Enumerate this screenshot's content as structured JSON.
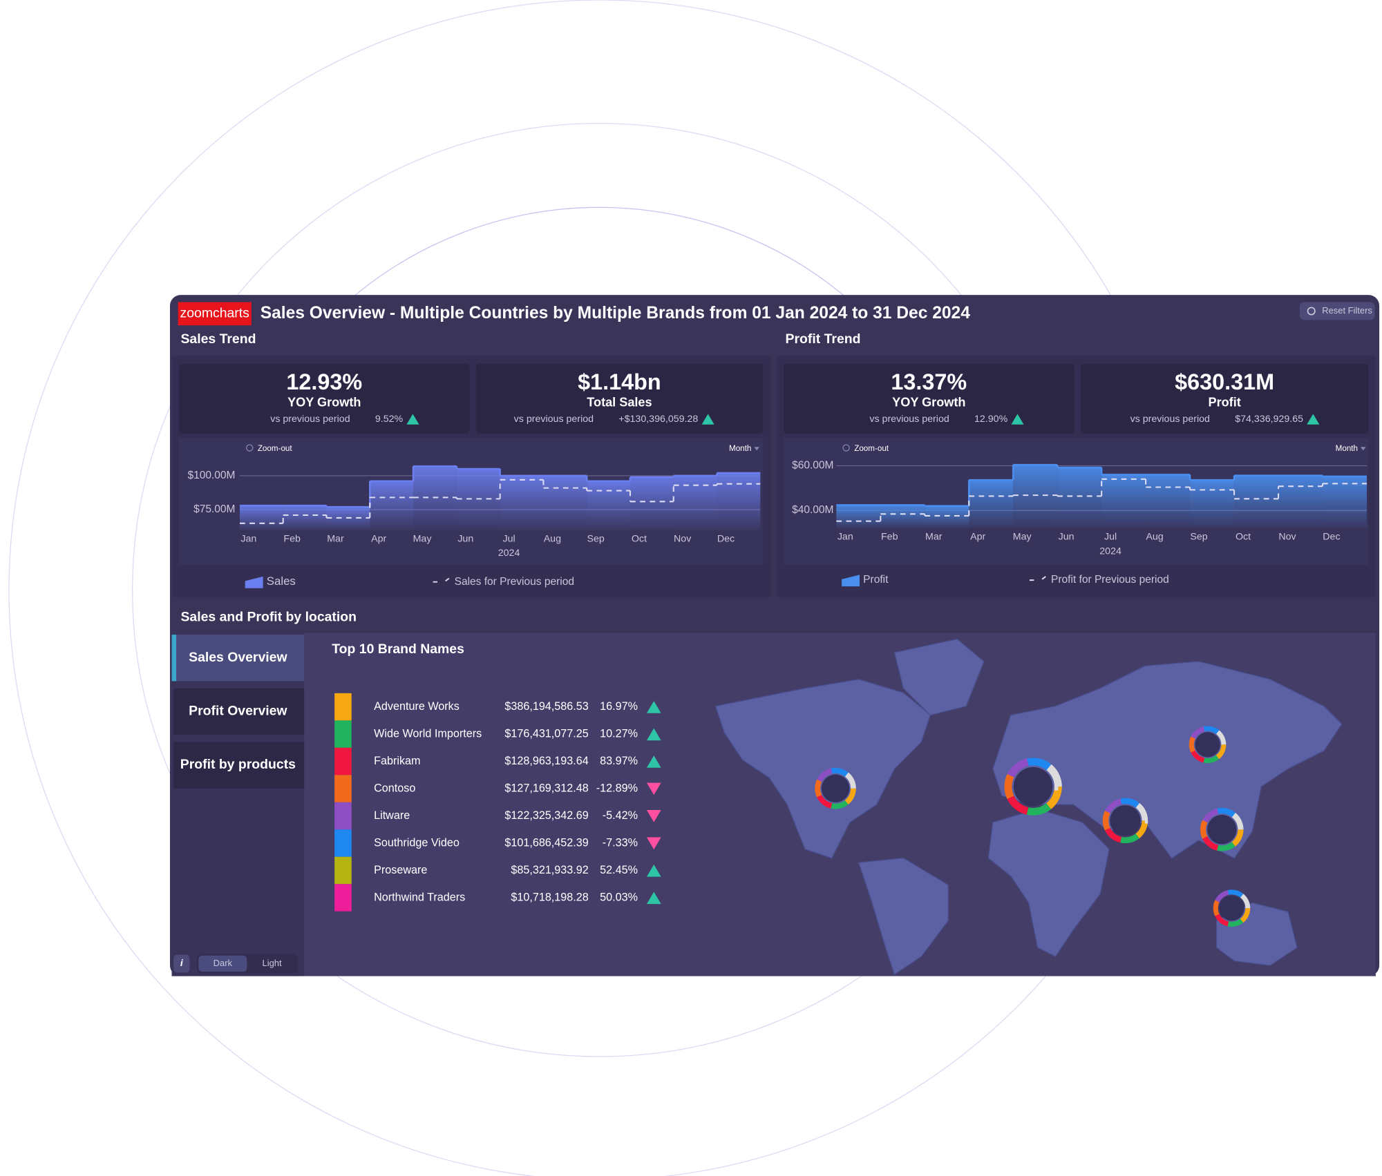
{
  "header": {
    "logo": "zoomcharts",
    "title": "Sales Overview - Multiple Countries by Multiple Brands from 01 Jan 2024 to 31 Dec 2024",
    "reset": "Reset Filters"
  },
  "kpis": [
    {
      "value": "12.93%",
      "label": "YOY Growth",
      "compare": "vs previous period",
      "delta": "9.52%",
      "trend": "up"
    },
    {
      "value": "$1.14bn",
      "label": "Total Sales",
      "compare": "vs previous period",
      "delta": "+$130,396,059.28",
      "trend": "up"
    },
    {
      "value": "13.37%",
      "label": "YOY Growth",
      "compare": "vs previous period",
      "delta": "12.90%",
      "trend": "up"
    },
    {
      "value": "$630.31M",
      "label": "Profit",
      "compare": "vs previous period",
      "delta": "$74,336,929.65",
      "trend": "up"
    }
  ],
  "chart_data": [
    {
      "type": "line",
      "step": true,
      "title": "Sales Trend",
      "zoom": "Zoom-out",
      "interval": "Month",
      "categories": [
        "Jan",
        "Feb",
        "Mar",
        "Apr",
        "May",
        "Jun",
        "Jul",
        "Aug",
        "Sep",
        "Oct",
        "Nov",
        "Dec"
      ],
      "x_group_label": "2024",
      "series": [
        {
          "name": "Sales",
          "color": "#6b7ff0",
          "fill": true,
          "values": [
            78000000,
            78000000,
            77000000,
            96000000,
            107000000,
            105000000,
            100000000,
            100000000,
            96000000,
            99000000,
            100000000,
            102000000
          ]
        },
        {
          "name": "Sales for Previous period",
          "color": "#dcdcf2",
          "dash": true,
          "values": [
            65000000,
            71000000,
            69000000,
            84000000,
            84000000,
            83000000,
            97000000,
            91000000,
            89000000,
            81000000,
            93000000,
            94000000
          ]
        }
      ],
      "ylim": [
        60000000,
        110000000
      ],
      "yticks": [
        {
          "value": 75000000,
          "label": "$75.00M"
        },
        {
          "value": 100000000,
          "label": "$100.00M"
        }
      ],
      "grid": true
    },
    {
      "type": "line",
      "step": true,
      "title": "Profit Trend",
      "zoom": "Zoom-out",
      "interval": "Month",
      "categories": [
        "Jan",
        "Feb",
        "Mar",
        "Apr",
        "May",
        "Jun",
        "Jul",
        "Aug",
        "Sep",
        "Oct",
        "Nov",
        "Dec"
      ],
      "x_group_label": "2024",
      "series": [
        {
          "name": "Profit",
          "color": "#4a8ff0",
          "fill": true,
          "values": [
            42400000,
            42400000,
            42000000,
            53600000,
            60400000,
            59200000,
            56000000,
            56000000,
            53600000,
            55600000,
            55600000,
            55200000
          ]
        },
        {
          "name": "Profit for Previous period",
          "color": "#dcdcf2",
          "dash": true,
          "values": [
            35200000,
            38400000,
            37600000,
            46400000,
            46800000,
            46400000,
            54000000,
            50400000,
            49200000,
            45200000,
            50800000,
            52000000
          ]
        }
      ],
      "ylim": [
        32000000,
        64000000
      ],
      "yticks": [
        {
          "value": 40000000,
          "label": "$40.00M"
        },
        {
          "value": 60000000,
          "label": "$60.00M"
        }
      ],
      "grid": true
    }
  ],
  "location": {
    "title": "Sales and Profit by location",
    "tabs": [
      "Sales Overview",
      "Profit Overview",
      "Profit by products"
    ],
    "active_tab": 0,
    "table": {
      "title": "Top 10 Brand Names",
      "rows": [
        {
          "color": "#f7a712",
          "name": "Adventure Works",
          "sales": "$386,194,586.53",
          "change": "16.97%",
          "trend": "up"
        },
        {
          "color": "#22b35e",
          "name": "Wide World Importers",
          "sales": "$176,431,077.25",
          "change": "10.27%",
          "trend": "up"
        },
        {
          "color": "#f0163f",
          "name": "Fabrikam",
          "sales": "$128,963,193.64",
          "change": "83.97%",
          "trend": "up"
        },
        {
          "color": "#f26b1d",
          "name": "Contoso",
          "sales": "$127,169,312.48",
          "change": "-12.89%",
          "trend": "down"
        },
        {
          "color": "#8e4fc4",
          "name": "Litware",
          "sales": "$122,325,342.69",
          "change": "-5.42%",
          "trend": "down"
        },
        {
          "color": "#1e88f0",
          "name": "Southridge Video",
          "sales": "$101,686,452.39",
          "change": "-7.33%",
          "trend": "down"
        },
        {
          "color": "#b5b512",
          "name": "Proseware",
          "sales": "$85,321,933.92",
          "change": "52.45%",
          "trend": "up"
        },
        {
          "color": "#ee1d9a",
          "name": "Northwind Traders",
          "sales": "$10,718,198.28",
          "change": "50.03%",
          "trend": "up"
        }
      ]
    }
  },
  "footer": {
    "info": "i",
    "themes": [
      "Dark",
      "Light"
    ],
    "active_theme": 0
  }
}
